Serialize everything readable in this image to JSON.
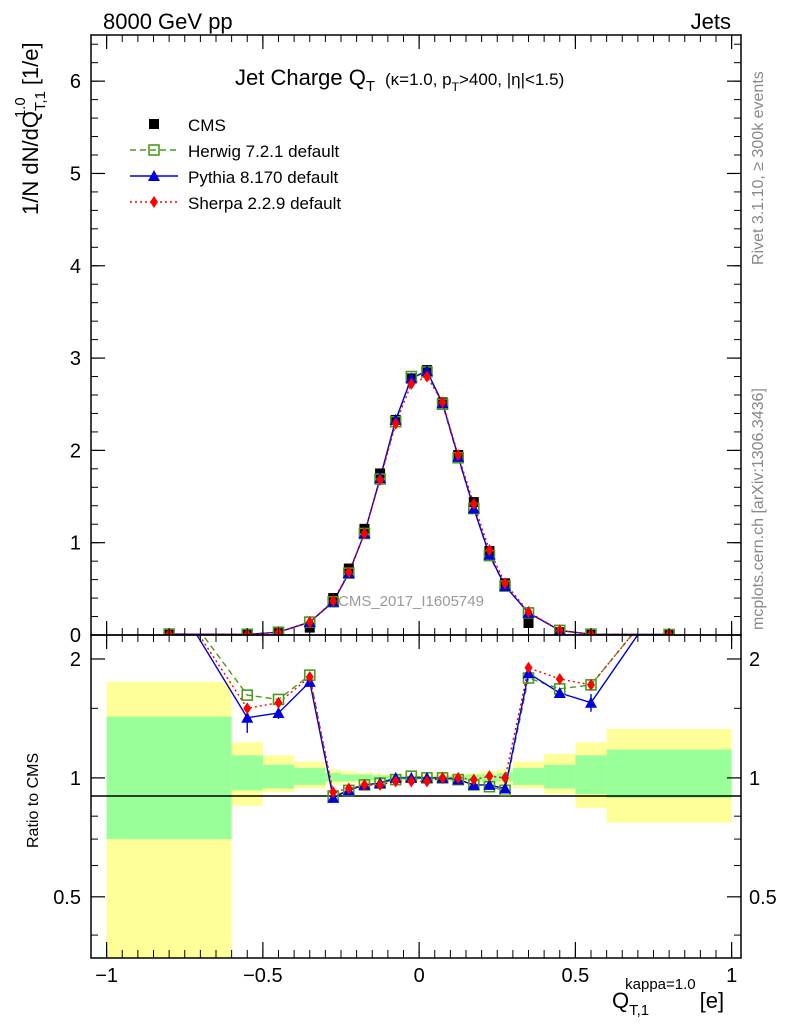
{
  "header": {
    "left": "8000 GeV pp",
    "right": "Jets"
  },
  "side_labels": {
    "rivet": "Rivet 3.1.10, ≥ 300k events",
    "site": "mcplots.cern.ch [arXiv:1306.3436]"
  },
  "watermark": "CMS_2017_I1605749",
  "chart_data": [
    {
      "type": "line",
      "title": "Jet Charge Q_T (κ=1.0, p_T>400, |η|<1.5)",
      "title_parts": {
        "main": "Jet Charge Q",
        "main_sub": "T",
        "cond": "(κ=1.0, p",
        "cond_sub": "T",
        "cond2": ">400, |η|<1.5)"
      },
      "ylabel": "1/N dN/dQ_T,1^1.0 [1/e]",
      "ylim": [
        0,
        6.5
      ],
      "xlim": [
        -1.05,
        1.03
      ],
      "y_ticks": [
        0,
        1,
        2,
        3,
        4,
        5,
        6
      ],
      "legend_position": "top-left",
      "x": [
        -0.8,
        -0.55,
        -0.45,
        -0.35,
        -0.275,
        -0.225,
        -0.175,
        -0.125,
        -0.075,
        -0.025,
        0.025,
        0.075,
        0.125,
        0.175,
        0.225,
        0.275,
        0.35,
        0.45,
        0.55,
        0.8
      ],
      "series": [
        {
          "name": "CMS",
          "color": "#000000",
          "style": "square-filled",
          "values": [
            0.005,
            0.005,
            0.02,
            0.08,
            0.4,
            0.72,
            1.15,
            1.75,
            2.33,
            2.78,
            2.87,
            2.52,
            1.95,
            1.44,
            0.91,
            0.56,
            0.13,
            0.03,
            0.005,
            0.003
          ]
        },
        {
          "name": "Herwig 7.2.1 default",
          "color": "#4c9a1c",
          "style": "square-open-dashed",
          "values": [
            0.01,
            0.008,
            0.03,
            0.14,
            0.36,
            0.67,
            1.1,
            1.69,
            2.31,
            2.8,
            2.85,
            2.5,
            1.92,
            1.37,
            0.86,
            0.53,
            0.24,
            0.05,
            0.009,
            0.005
          ]
        },
        {
          "name": "Pythia 8.170 default",
          "color": "#0000dd",
          "style": "triangle-solid",
          "values": [
            0.01,
            0.007,
            0.03,
            0.14,
            0.36,
            0.67,
            1.1,
            1.7,
            2.33,
            2.78,
            2.86,
            2.51,
            1.93,
            1.37,
            0.87,
            0.53,
            0.24,
            0.05,
            0.008,
            0.005
          ]
        },
        {
          "name": "Sherpa 2.2.9 default",
          "color": "#ff0000",
          "style": "diamond-dotted",
          "values": [
            0.01,
            0.007,
            0.03,
            0.14,
            0.37,
            0.68,
            1.1,
            1.68,
            2.29,
            2.72,
            2.8,
            2.52,
            1.95,
            1.42,
            0.92,
            0.56,
            0.25,
            0.05,
            0.008,
            0.005
          ]
        }
      ]
    },
    {
      "type": "line",
      "title": "",
      "ylabel": "Ratio to CMS",
      "xlabel": "Q_T,1^kappa=1.0 [e]",
      "xlabel_parts": {
        "main": "Q",
        "sub": "T,1",
        "sup": "kappa=1.0",
        "unit": "[e]"
      },
      "ylim": [
        0.35,
        2.3
      ],
      "y_scale": "log",
      "y_ticks": [
        0.5,
        1,
        2
      ],
      "x_ticks": [
        -1,
        -0.5,
        0,
        0.5,
        1
      ],
      "x_tick_labels": [
        "−1",
        "−0.5",
        "0",
        "0.5",
        "1"
      ],
      "bands": [
        {
          "x": [
            -1.0,
            -0.6
          ],
          "inner": [
            0.7,
            1.43
          ],
          "outer": [
            0.35,
            1.75
          ]
        },
        {
          "x": [
            -0.6,
            -0.5
          ],
          "inner": [
            0.93,
            1.14
          ],
          "outer": [
            0.85,
            1.23
          ]
        },
        {
          "x": [
            -0.5,
            -0.4
          ],
          "inner": [
            0.94,
            1.08
          ],
          "outer": [
            0.92,
            1.14
          ]
        },
        {
          "x": [
            -0.4,
            -0.3
          ],
          "inner": [
            0.96,
            1.06
          ],
          "outer": [
            0.94,
            1.1
          ]
        },
        {
          "x": [
            -0.3,
            -0.25
          ],
          "inner": [
            0.98,
            1.03
          ],
          "outer": [
            0.96,
            1.05
          ]
        },
        {
          "x": [
            -0.25,
            -0.2
          ],
          "inner": [
            0.98,
            1.02
          ],
          "outer": [
            0.97,
            1.04
          ]
        },
        {
          "x": [
            -0.2,
            -0.15
          ],
          "inner": [
            0.985,
            1.02
          ],
          "outer": [
            0.97,
            1.03
          ]
        },
        {
          "x": [
            -0.15,
            -0.1
          ],
          "inner": [
            0.985,
            1.015
          ],
          "outer": [
            0.975,
            1.025
          ]
        },
        {
          "x": [
            -0.1,
            -0.05
          ],
          "inner": [
            0.99,
            1.012
          ],
          "outer": [
            0.98,
            1.02
          ]
        },
        {
          "x": [
            -0.05,
            0.0
          ],
          "inner": [
            0.99,
            1.01
          ],
          "outer": [
            0.98,
            1.02
          ]
        },
        {
          "x": [
            0.0,
            0.05
          ],
          "inner": [
            0.99,
            1.01
          ],
          "outer": [
            0.98,
            1.02
          ]
        },
        {
          "x": [
            0.05,
            0.1
          ],
          "inner": [
            0.99,
            1.012
          ],
          "outer": [
            0.98,
            1.02
          ]
        },
        {
          "x": [
            0.1,
            0.15
          ],
          "inner": [
            0.985,
            1.015
          ],
          "outer": [
            0.975,
            1.025
          ]
        },
        {
          "x": [
            0.15,
            0.2
          ],
          "inner": [
            0.985,
            1.02
          ],
          "outer": [
            0.97,
            1.03
          ]
        },
        {
          "x": [
            0.2,
            0.25
          ],
          "inner": [
            0.98,
            1.02
          ],
          "outer": [
            0.97,
            1.04
          ]
        },
        {
          "x": [
            0.25,
            0.3
          ],
          "inner": [
            0.98,
            1.03
          ],
          "outer": [
            0.96,
            1.05
          ]
        },
        {
          "x": [
            0.3,
            0.4
          ],
          "inner": [
            0.96,
            1.06
          ],
          "outer": [
            0.94,
            1.1
          ]
        },
        {
          "x": [
            0.4,
            0.5
          ],
          "inner": [
            0.94,
            1.08
          ],
          "outer": [
            0.91,
            1.15
          ]
        },
        {
          "x": [
            0.5,
            0.6
          ],
          "inner": [
            0.91,
            1.14
          ],
          "outer": [
            0.84,
            1.23
          ]
        },
        {
          "x": [
            0.6,
            1.0
          ],
          "inner": [
            0.89,
            1.18
          ],
          "outer": [
            0.77,
            1.33
          ]
        }
      ],
      "series": [
        {
          "name": "Herwig 7.2.1 default",
          "color": "#4c9a1c",
          "style": "square-open-dashed",
          "x": [
            -0.8,
            -0.55,
            -0.45,
            -0.35,
            -0.275,
            -0.225,
            -0.175,
            -0.125,
            -0.075,
            -0.025,
            0.025,
            0.075,
            0.125,
            0.175,
            0.225,
            0.275,
            0.35,
            0.45,
            0.55,
            0.8
          ],
          "values": [
            3.0,
            1.62,
            1.58,
            1.82,
            0.9,
            0.93,
            0.96,
            0.97,
            0.99,
            1.01,
            1.0,
            1.0,
            0.99,
            0.96,
            0.95,
            0.93,
            1.79,
            1.68,
            1.72,
            3.0
          ]
        },
        {
          "name": "Pythia 8.170 default",
          "color": "#0000dd",
          "style": "triangle-solid",
          "x": [
            -0.8,
            -0.55,
            -0.45,
            -0.35,
            -0.275,
            -0.225,
            -0.175,
            -0.125,
            -0.075,
            -0.025,
            0.025,
            0.075,
            0.125,
            0.175,
            0.225,
            0.275,
            0.35,
            0.45,
            0.55,
            0.8
          ],
          "values": [
            3.0,
            1.42,
            1.46,
            1.75,
            0.89,
            0.93,
            0.96,
            0.97,
            1.0,
            1.0,
            1.0,
            1.0,
            0.99,
            0.96,
            0.96,
            0.94,
            1.84,
            1.64,
            1.55,
            3.0
          ],
          "errors": [
            0,
            0.12,
            0.05,
            0.02,
            0.01,
            0.01,
            0.01,
            0.01,
            0.005,
            0.005,
            0.005,
            0.005,
            0.005,
            0.01,
            0.01,
            0.01,
            0.03,
            0.03,
            0.08,
            0
          ]
        },
        {
          "name": "Sherpa 2.2.9 default",
          "color": "#ff0000",
          "style": "diamond-dotted",
          "x": [
            -0.8,
            -0.55,
            -0.45,
            -0.35,
            -0.275,
            -0.225,
            -0.175,
            -0.125,
            -0.075,
            -0.025,
            0.025,
            0.075,
            0.125,
            0.175,
            0.225,
            0.275,
            0.35,
            0.45,
            0.55,
            0.8
          ],
          "values": [
            3.0,
            1.5,
            1.55,
            1.8,
            0.92,
            0.94,
            0.96,
            0.96,
            0.98,
            0.98,
            0.98,
            1.0,
            1.0,
            0.99,
            1.01,
            1.0,
            1.9,
            1.78,
            1.72,
            3.0
          ]
        }
      ]
    }
  ]
}
